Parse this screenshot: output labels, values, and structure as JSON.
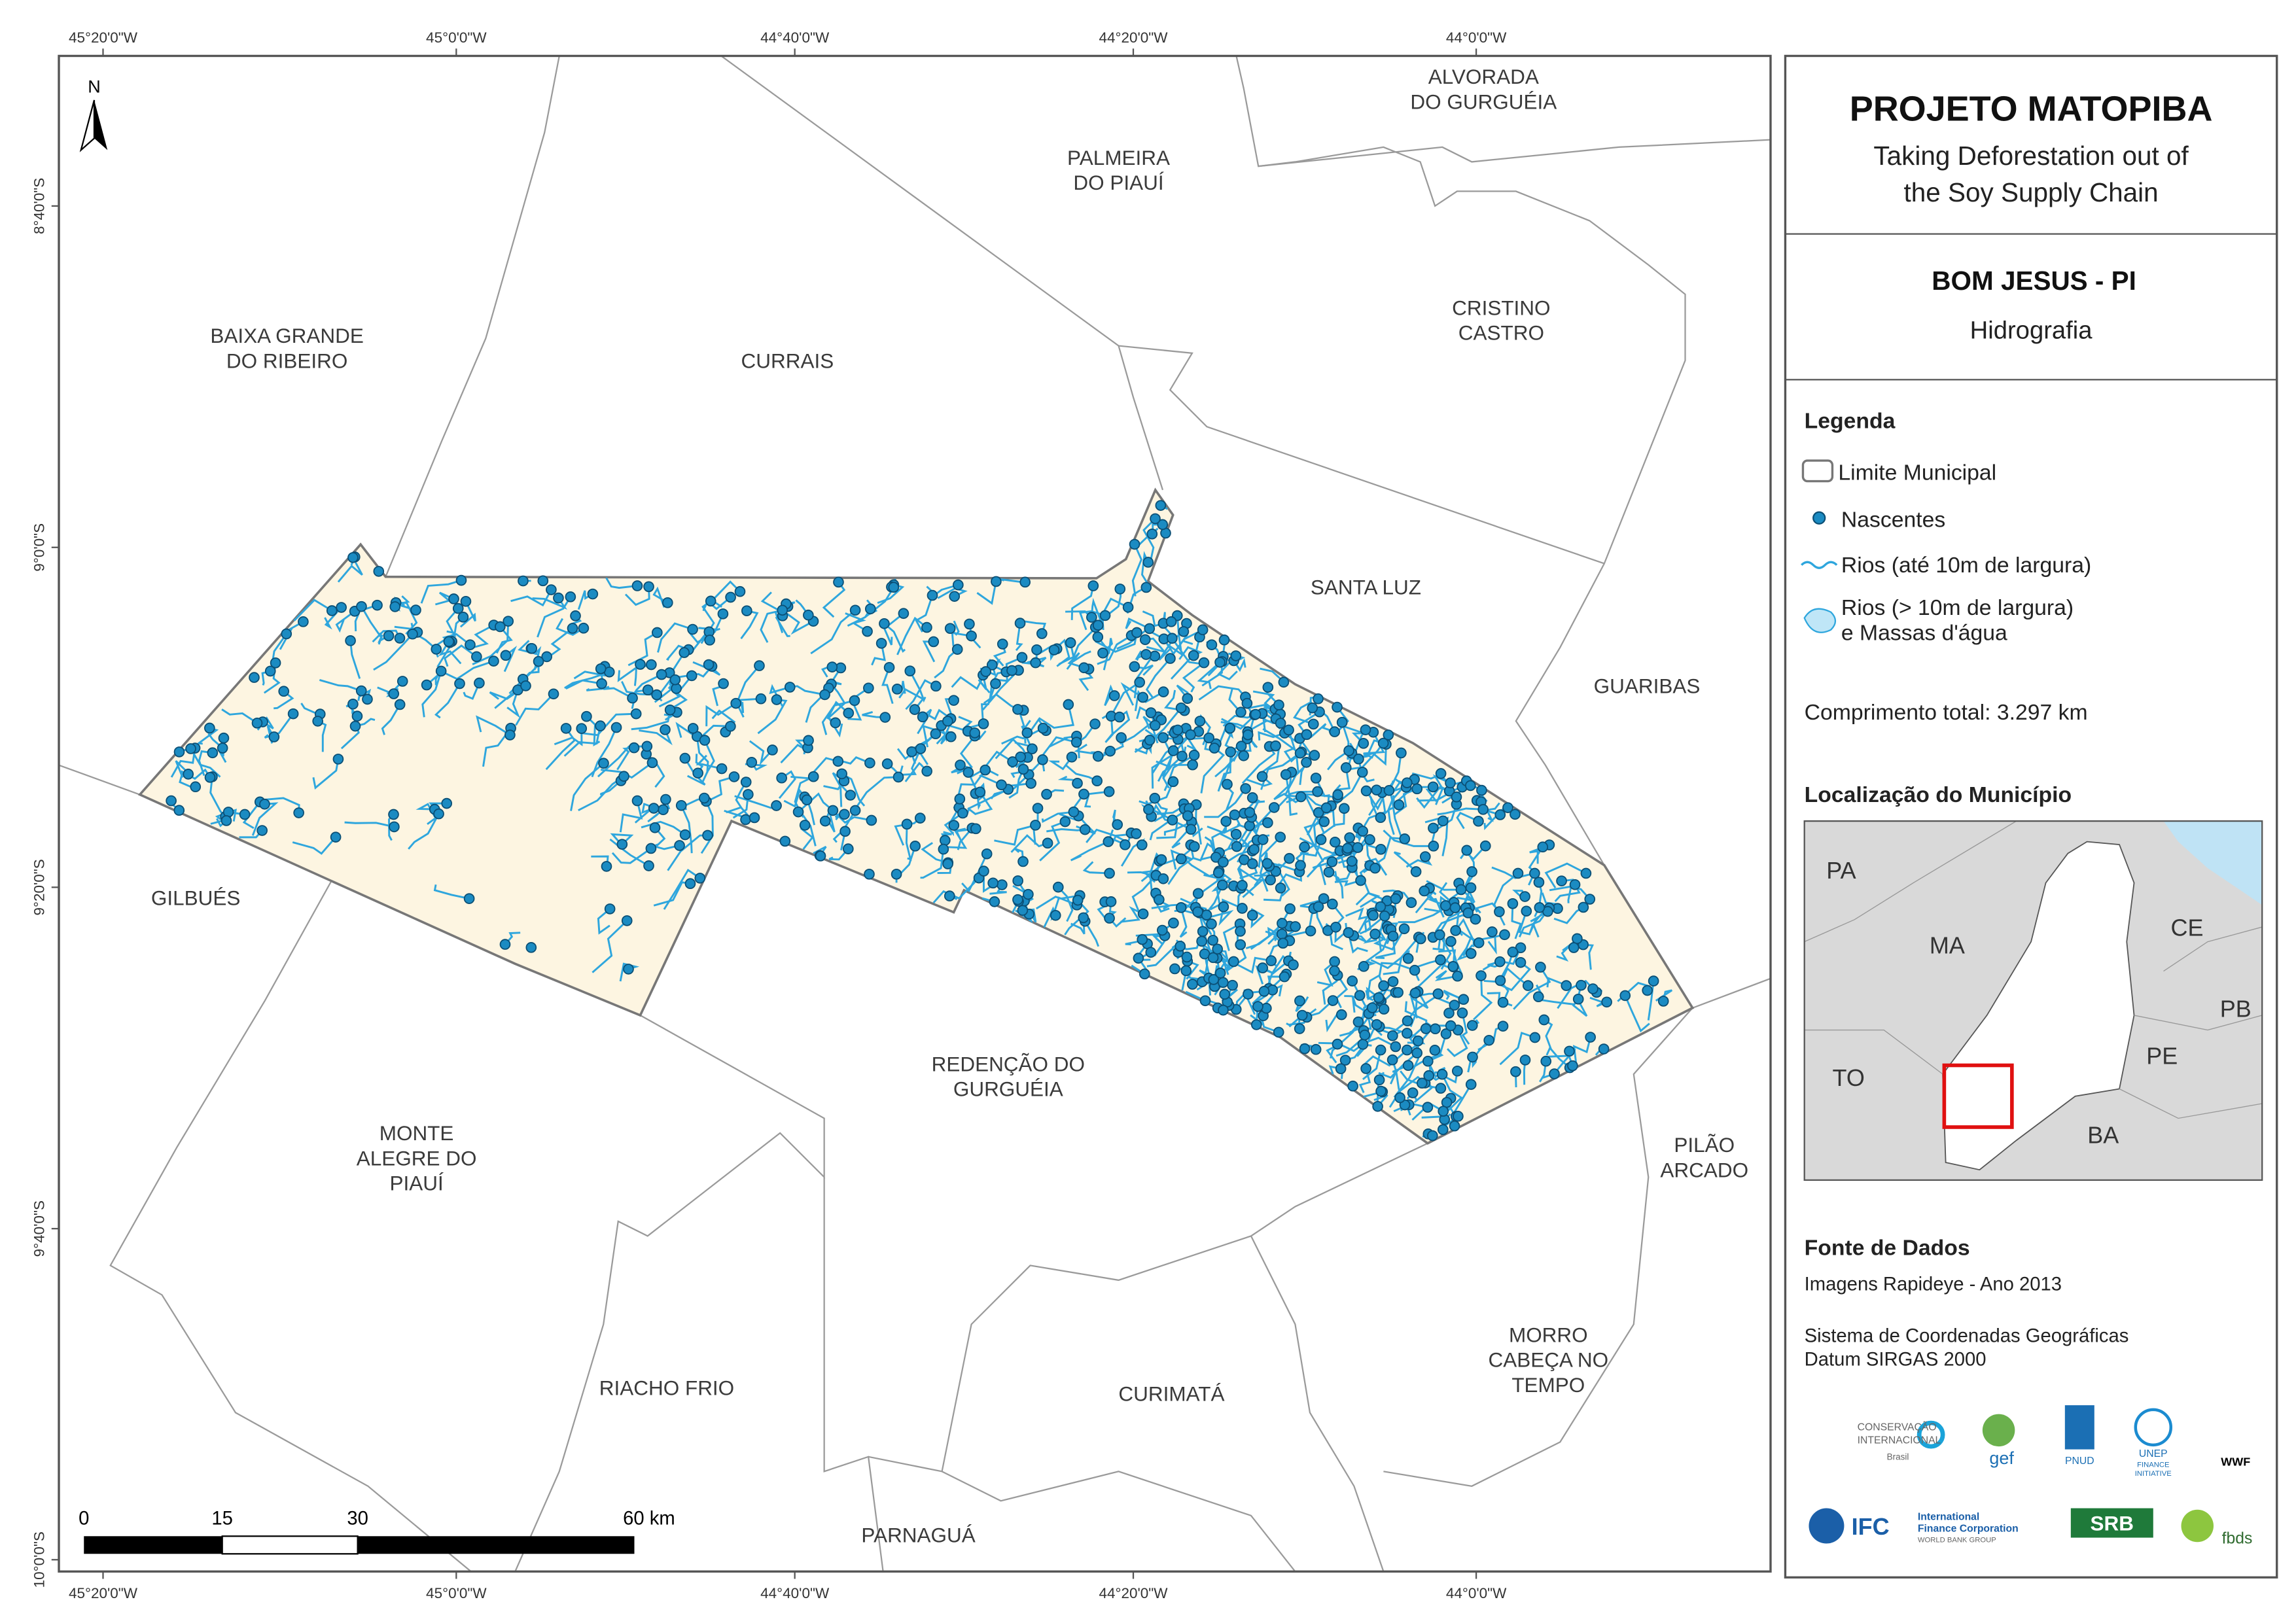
{
  "coordinates": {
    "top": [
      "45°20'0\"W",
      "45°0'0\"W",
      "44°40'0\"W",
      "44°20'0\"W",
      "44°0'0\"W"
    ],
    "bottom": [
      "45°20'0\"W",
      "45°0'0\"W",
      "44°40'0\"W",
      "44°20'0\"W",
      "44°0'0\"W"
    ],
    "left": [
      "8°40'0\"S",
      "9°0'0\"S",
      "9°20'0\"S",
      "9°40'0\"S",
      "10°0'0\"S"
    ]
  },
  "map_labels": [
    {
      "lines": [
        "ALVORADA",
        "DO GURGUÉIA"
      ]
    },
    {
      "lines": [
        "PALMEIRA",
        "DO PIAUÍ"
      ]
    },
    {
      "lines": [
        "CRISTINO",
        "CASTRO"
      ]
    },
    {
      "lines": [
        "BAIXA GRANDE",
        "DO RIBEIRO"
      ]
    },
    {
      "lines": [
        "CURRAIS"
      ]
    },
    {
      "lines": [
        "SANTA LUZ"
      ]
    },
    {
      "lines": [
        "GUARIBAS"
      ]
    },
    {
      "lines": [
        "GILBUÉS"
      ]
    },
    {
      "lines": [
        "REDENÇÃO DO",
        "GURGUÉIA"
      ]
    },
    {
      "lines": [
        "MONTE",
        "ALEGRE DO",
        "PIAUÍ"
      ]
    },
    {
      "lines": [
        "PILÃO",
        "ARCADO"
      ]
    },
    {
      "lines": [
        "MORRO",
        "CABEÇA NO",
        "TEMPO"
      ]
    },
    {
      "lines": [
        "RIACHO FRIO"
      ]
    },
    {
      "lines": [
        "CURIMATÁ"
      ]
    },
    {
      "lines": [
        "PARNAGUÁ"
      ]
    }
  ],
  "north_arrow": "N",
  "scale_bar": [
    "0",
    "15",
    "30",
    "60 km"
  ],
  "panel": {
    "title": "PROJETO MATOPIBA",
    "subtitle": [
      "Taking Deforestation out of",
      "the Soy Supply Chain"
    ],
    "municipality": "BOM JESUS - PI",
    "theme": "Hidrografia",
    "legend_title": "Legenda",
    "legend_items": [
      {
        "lines": [
          "Limite Municipal"
        ]
      },
      {
        "lines": [
          "Nascentes"
        ]
      },
      {
        "lines": [
          "Rios (até 10m de largura)"
        ]
      },
      {
        "lines": [
          "Rios (> 10m de largura)",
          "e Massas d'água"
        ]
      }
    ],
    "total_length": "Comprimento total:  3.297 km",
    "location_title": "Localização do Município",
    "inset_labels": [
      "PA",
      "MA",
      "CE",
      "PB",
      "TO",
      "PE",
      "BA"
    ],
    "sources_title": "Fonte de Dados",
    "sources": [
      "Imagens Rapideye - Ano 2013",
      "Sistema de Coordenadas Geográficas",
      "Datum SIRGAS 2000"
    ]
  },
  "logos": [
    "CONSERVAÇÃO",
    "INTERNACIONAL",
    "Brasil",
    "gef",
    "PNUD",
    "UNEP",
    "FINANCE",
    "INITIATIVE",
    "WWF",
    "IFC",
    "International",
    "Finance Corporation",
    "WORLD BANK GROUP",
    "SRB",
    "fbds"
  ]
}
